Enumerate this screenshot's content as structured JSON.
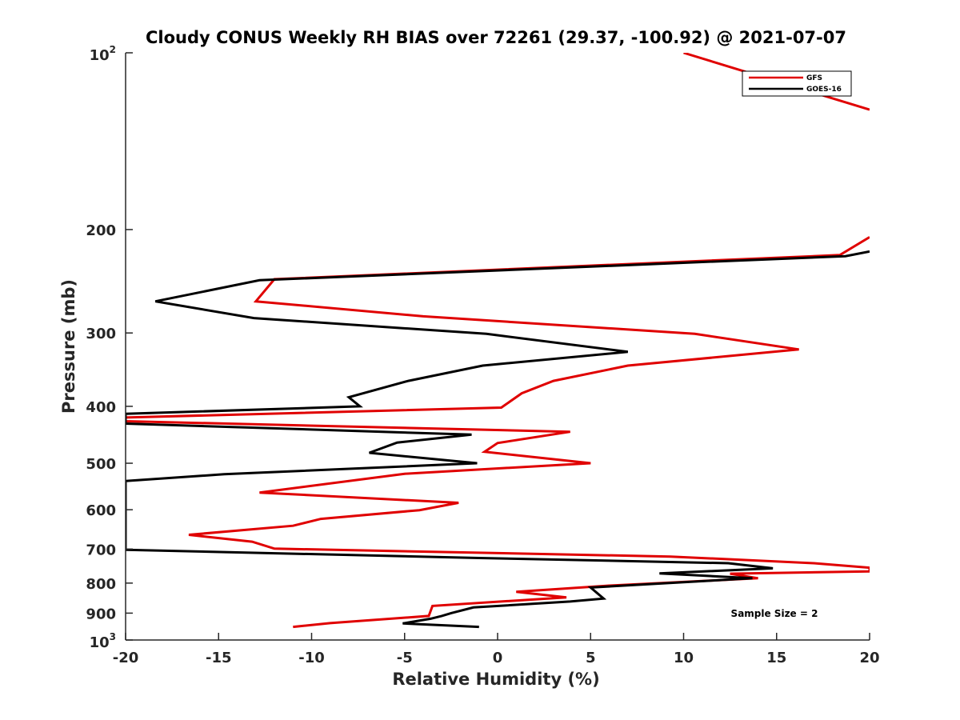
{
  "chart_data": {
    "type": "line",
    "title": "Cloudy CONUS Weekly RH BIAS over 72261 (29.37, -100.92) @ 2021-07-07",
    "xlabel": "Relative Humidity (%)",
    "ylabel": "Pressure (mb)",
    "xlim": [
      -20,
      20
    ],
    "ylim": [
      100,
      1000
    ],
    "y_scale": "log",
    "y_reversed": true,
    "grid": false,
    "legend_position": "top-right",
    "x_ticks": [
      "-20",
      "-15",
      "-10",
      "-5",
      "0",
      "5",
      "10",
      "15",
      "20"
    ],
    "y_ticks": [
      {
        "value": 100,
        "base": "10",
        "exp": "2"
      },
      {
        "value": 200,
        "label": "200"
      },
      {
        "value": 300,
        "label": "300"
      },
      {
        "value": 400,
        "label": "400"
      },
      {
        "value": 500,
        "label": "500"
      },
      {
        "value": 600,
        "label": "600"
      },
      {
        "value": 700,
        "label": "700"
      },
      {
        "value": 800,
        "label": "800"
      },
      {
        "value": 900,
        "label": "900"
      },
      {
        "value": 1000,
        "base": "10",
        "exp": "3"
      }
    ],
    "annotation": "Sample Size = 2",
    "series": [
      {
        "name": "GFS",
        "color": "#e00000",
        "points": [
          [
            10,
            100
          ],
          [
            20,
            125
          ],
          [
            null,
            null
          ],
          [
            20,
            206
          ],
          [
            18.4,
            221
          ],
          [
            -12,
            243
          ],
          [
            -13,
            265
          ],
          [
            -4,
            281
          ],
          [
            10.6,
            301
          ],
          [
            16.2,
            320
          ],
          [
            7,
            341
          ],
          [
            3,
            362
          ],
          [
            1.3,
            380
          ],
          [
            0.2,
            402
          ],
          [
            -20,
            418
          ],
          [
            -20,
            424
          ],
          [
            3.9,
            442
          ],
          [
            0,
            462
          ],
          [
            -0.7,
            478
          ],
          [
            5,
            500
          ],
          [
            -5,
            521
          ],
          [
            -12.8,
            561
          ],
          [
            -2.1,
            584
          ],
          [
            -4.2,
            601
          ],
          [
            -9.5,
            622
          ],
          [
            -11,
            639
          ],
          [
            -16.6,
            662
          ],
          [
            -13.2,
            680
          ],
          [
            -12,
            699
          ],
          [
            9.3,
            721
          ],
          [
            17,
            740
          ],
          [
            20,
            753
          ],
          [
            20,
            764
          ],
          [
            12.5,
            771
          ],
          [
            14,
            785
          ],
          [
            6,
            808
          ],
          [
            1,
            828
          ],
          [
            3.7,
            846
          ],
          [
            -3.5,
            875
          ],
          [
            -3.7,
            910
          ],
          [
            -9,
            936
          ],
          [
            -11,
            950
          ]
        ]
      },
      {
        "name": "GOES-16",
        "color": "#000000",
        "points": [
          [
            20,
            218
          ],
          [
            18.7,
            222
          ],
          [
            -12.8,
            244
          ],
          [
            -18.4,
            265
          ],
          [
            -13.1,
            283
          ],
          [
            -0.6,
            301
          ],
          [
            7,
            323
          ],
          [
            -0.8,
            341
          ],
          [
            -4.8,
            362
          ],
          [
            -8,
            386
          ],
          [
            -7.4,
            400
          ],
          [
            -20,
            412
          ],
          [
            -20,
            428
          ],
          [
            -1.4,
            447
          ],
          [
            -5.4,
            461
          ],
          [
            -6.9,
            480
          ],
          [
            -1.1,
            500
          ],
          [
            -14.7,
            522
          ],
          [
            -20,
            536
          ],
          [
            -20,
            702
          ],
          [
            -1,
            725
          ],
          [
            12.4,
            740
          ],
          [
            14.8,
            755
          ],
          [
            8.7,
            770
          ],
          [
            13.7,
            785
          ],
          [
            5,
            814
          ],
          [
            5.7,
            850
          ],
          [
            3.9,
            860
          ],
          [
            -1.3,
            880
          ],
          [
            -2.5,
            900
          ],
          [
            -3,
            910
          ],
          [
            -3.6,
            920
          ],
          [
            -5.1,
            937
          ],
          [
            -1,
            950
          ]
        ]
      }
    ]
  }
}
